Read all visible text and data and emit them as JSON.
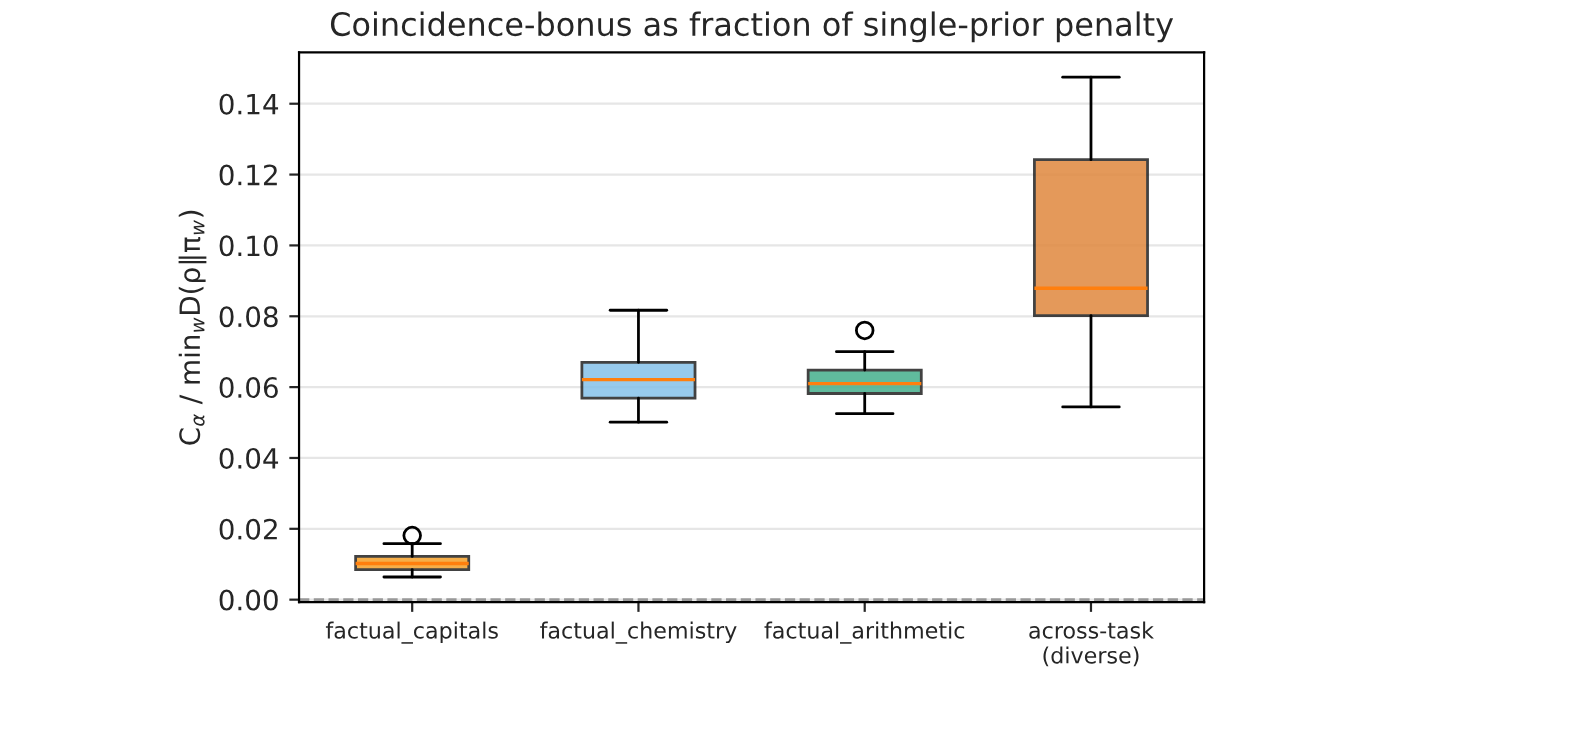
{
  "chart_data": {
    "type": "box",
    "title": "Coincidence-bonus as fraction of single-prior penalty",
    "ylabel": "C$_{α}$ / min$_{w}$D(ρ‖π$_{w}$)",
    "categories": [
      "factual_capitals",
      "factual_chemistry",
      "factual_arithmetic",
      "across-task\n(diverse)"
    ],
    "colors": [
      "#f5a02a",
      "#85c1e9",
      "#45b08c",
      "#e0883e"
    ],
    "boxes": [
      {
        "low": 0.0064,
        "q1": 0.0085,
        "median": 0.0102,
        "q3": 0.0122,
        "high": 0.0158,
        "outliers": [
          0.0181
        ]
      },
      {
        "low": 0.0501,
        "q1": 0.0569,
        "median": 0.0621,
        "q3": 0.067,
        "high": 0.0817
      },
      {
        "low": 0.0525,
        "q1": 0.0582,
        "median": 0.061,
        "q3": 0.0648,
        "high": 0.07,
        "outliers": [
          0.076
        ]
      },
      {
        "low": 0.0544,
        "q1": 0.0802,
        "median": 0.0879,
        "q3": 0.1242,
        "high": 0.1475
      }
    ],
    "ylim": [
      -0.0007,
      0.1545
    ],
    "yticks": [
      {
        "value": 0,
        "label": "0.00"
      },
      {
        "value": 0.02,
        "label": "0.02"
      },
      {
        "value": 0.04,
        "label": "0.04"
      },
      {
        "value": 0.06,
        "label": "0.06"
      },
      {
        "value": 0.08,
        "label": "0.08"
      },
      {
        "value": 0.1,
        "label": "0.10"
      },
      {
        "value": 0.12,
        "label": "0.12"
      },
      {
        "value": 0.14,
        "label": "0.14"
      }
    ],
    "grid": "y",
    "ref_lines": [
      {
        "axis": "y",
        "value": 0,
        "color": "#999999",
        "line_style": "dashed"
      }
    ]
  }
}
